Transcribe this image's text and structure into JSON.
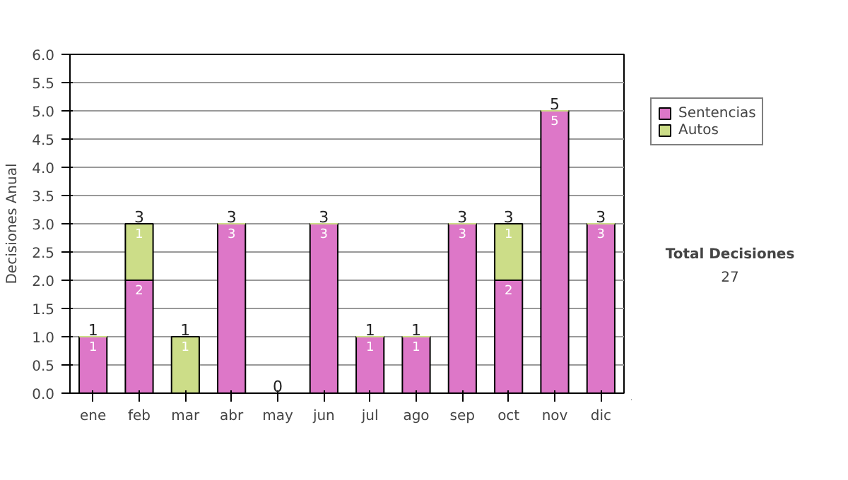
{
  "chart_data": {
    "type": "bar",
    "stacked": true,
    "ylabel": "Decisiones Anual",
    "categories": [
      "ene",
      "feb",
      "mar",
      "abr",
      "may",
      "jun",
      "jul",
      "ago",
      "sep",
      "oct",
      "nov",
      "dic"
    ],
    "series": [
      {
        "name": "Sentencias",
        "color": "#dd77c8",
        "values": [
          1,
          2,
          0,
          3,
          0,
          3,
          1,
          1,
          3,
          2,
          5,
          3
        ],
        "value_labels": [
          "1",
          "2",
          null,
          "3",
          null,
          "3",
          "1",
          "1",
          "3",
          "2",
          "5",
          "3"
        ]
      },
      {
        "name": "Autos",
        "color": "#ccdd88",
        "values": [
          0,
          1,
          1,
          0,
          0,
          0,
          0,
          0,
          0,
          1,
          0,
          0
        ],
        "value_labels": [
          null,
          "1",
          "1",
          null,
          null,
          null,
          null,
          null,
          null,
          "1",
          null,
          null
        ]
      }
    ],
    "totals": [
      "1",
      "3",
      "1",
      "3",
      "0",
      "3",
      "1",
      "1",
      "3",
      "3",
      "5",
      "3"
    ],
    "ylim": [
      0,
      6
    ],
    "yticks": [
      {
        "value": 0,
        "label": "0.0"
      },
      {
        "value": 0.5,
        "label": "0.5"
      },
      {
        "value": 1,
        "label": "1.0"
      },
      {
        "value": 1.5,
        "label": "1.5"
      },
      {
        "value": 2,
        "label": "2.0"
      },
      {
        "value": 2.5,
        "label": "2.5"
      },
      {
        "value": 3,
        "label": "3.0"
      },
      {
        "value": 3.5,
        "label": "3.5"
      },
      {
        "value": 4,
        "label": "4.0"
      },
      {
        "value": 4.5,
        "label": "4.5"
      },
      {
        "value": 5,
        "label": "5.0"
      },
      {
        "value": 5.5,
        "label": "5.5"
      },
      {
        "value": 6,
        "label": "6.0"
      }
    ],
    "grid": "y",
    "legend": "right",
    "annotations": [
      "Total Decisiones",
      "27"
    ]
  }
}
